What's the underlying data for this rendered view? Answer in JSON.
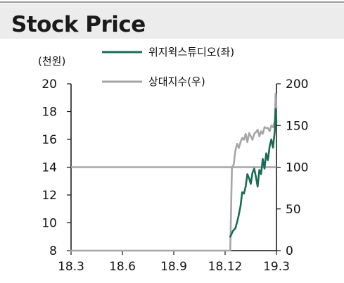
{
  "title": "Stock Price",
  "chart_data": {
    "type": "line",
    "left_axis_unit": "(천원)",
    "x_ticks": [
      "18.3",
      "18.6",
      "18.9",
      "18.12",
      "19.3"
    ],
    "x_tick_positions": [
      0,
      3,
      6,
      9,
      12
    ],
    "y_left": {
      "min": 8,
      "max": 20,
      "ticks": [
        "8",
        "10",
        "12",
        "14",
        "16",
        "18",
        "20"
      ]
    },
    "y_right": {
      "min": 0,
      "max": 200,
      "ticks": [
        "0",
        "50",
        "100",
        "150",
        "200"
      ]
    },
    "reference_line": {
      "axis": "right",
      "value": 100
    },
    "legend": {
      "placement": "top-center"
    },
    "colors": {
      "company": "#1b6b55",
      "relative": "#a6a6a6",
      "reference": "#a6a6a6"
    },
    "series": [
      {
        "name": "위지윅스튜디오(좌)",
        "axis": "left",
        "x": [
          9.3,
          9.45,
          9.6,
          9.75,
          9.9,
          10.0,
          10.1,
          10.2,
          10.3,
          10.4,
          10.5,
          10.6,
          10.7,
          10.8,
          10.9,
          11.0,
          11.1,
          11.2,
          11.3,
          11.4,
          11.5,
          11.6,
          11.7,
          11.8,
          11.9,
          11.95,
          12.0
        ],
        "y": [
          9.0,
          9.4,
          9.6,
          10.3,
          11.2,
          12.2,
          12.1,
          12.6,
          13.5,
          13.2,
          12.8,
          13.6,
          13.9,
          13.3,
          12.6,
          13.8,
          13.5,
          14.6,
          13.9,
          15.0,
          14.5,
          15.5,
          16.0,
          15.4,
          16.6,
          18.2,
          17.2
        ]
      },
      {
        "name": "상대지수(우)",
        "axis": "right",
        "x": [
          0,
          9.3,
          9.4,
          9.5,
          9.6,
          9.7,
          9.8,
          9.9,
          10.0,
          10.1,
          10.2,
          10.3,
          10.4,
          10.5,
          10.6,
          10.7,
          10.8,
          10.9,
          11.0,
          11.1,
          11.2,
          11.3,
          11.4,
          11.5,
          11.6,
          11.7,
          11.8,
          11.9,
          11.95,
          12.0
        ],
        "y": [
          0,
          0,
          100,
          103,
          120,
          128,
          123,
          130,
          135,
          133,
          140,
          130,
          141,
          137,
          133,
          140,
          142,
          145,
          137,
          143,
          140,
          148,
          147,
          147,
          143,
          150,
          148,
          155,
          188,
          170
        ]
      }
    ]
  }
}
